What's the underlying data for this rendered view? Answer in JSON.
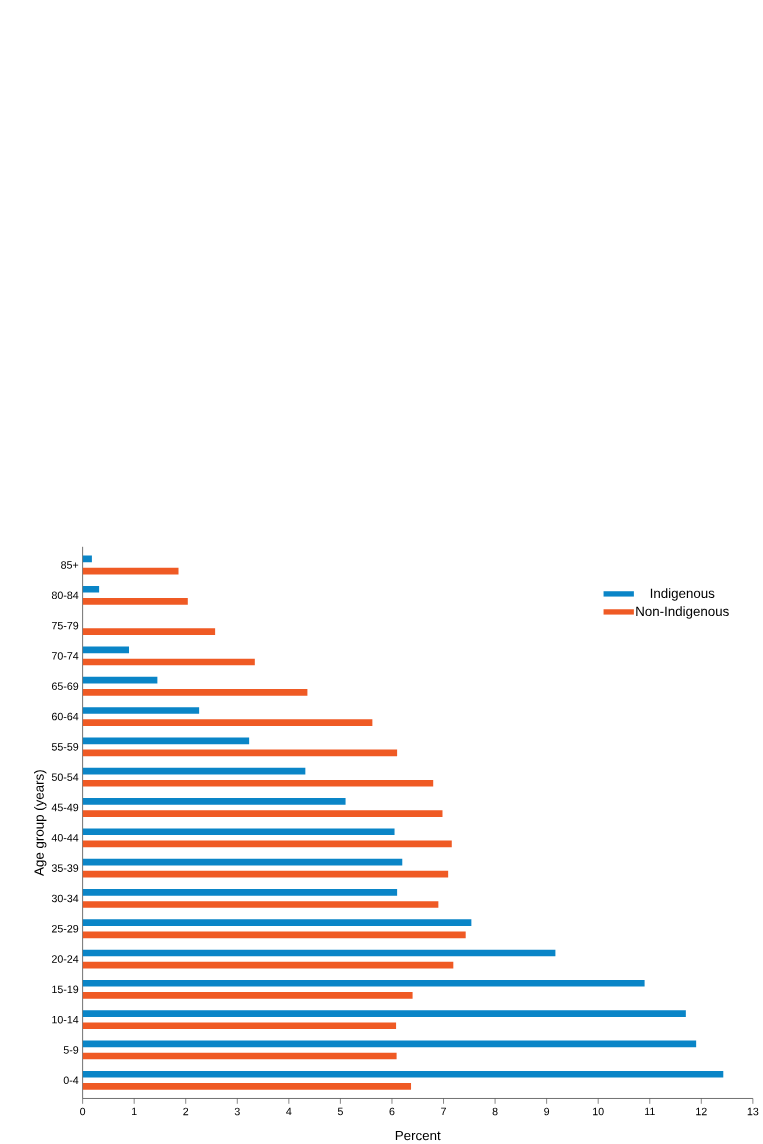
{
  "chart_data": {
    "type": "bar",
    "orientation": "horizontal",
    "xlabel": "Percent",
    "ylabel": "Age group (years)",
    "categories": [
      "85+",
      "80-84",
      "75-79",
      "70-74",
      "65-69",
      "60-64",
      "55-59",
      "50-54",
      "45-49",
      "40-44",
      "35-39",
      "30-34",
      "25-29",
      "20-24",
      "15-19",
      "10-14",
      "5-9",
      "0-4"
    ],
    "series": [
      {
        "name": "Indigenous",
        "color": "#0a85c7",
        "values": [
          0.18,
          0.32,
          null,
          0.9,
          1.45,
          2.26,
          3.23,
          4.32,
          5.1,
          6.05,
          6.2,
          6.1,
          7.54,
          9.17,
          10.9,
          11.7,
          11.9,
          12.43
        ]
      },
      {
        "name": "Non-Indigenous",
        "color": "#ef5a24",
        "values": [
          1.86,
          2.04,
          2.57,
          3.34,
          4.36,
          5.62,
          6.1,
          6.8,
          6.98,
          7.16,
          7.09,
          6.9,
          7.43,
          7.19,
          6.4,
          6.08,
          6.09,
          6.37
        ]
      }
    ],
    "xlim": [
      0,
      13
    ],
    "xticks": [
      0,
      1,
      2,
      3,
      4,
      5,
      6,
      7,
      8,
      9,
      10,
      11,
      12,
      13
    ],
    "legend": "top right"
  }
}
